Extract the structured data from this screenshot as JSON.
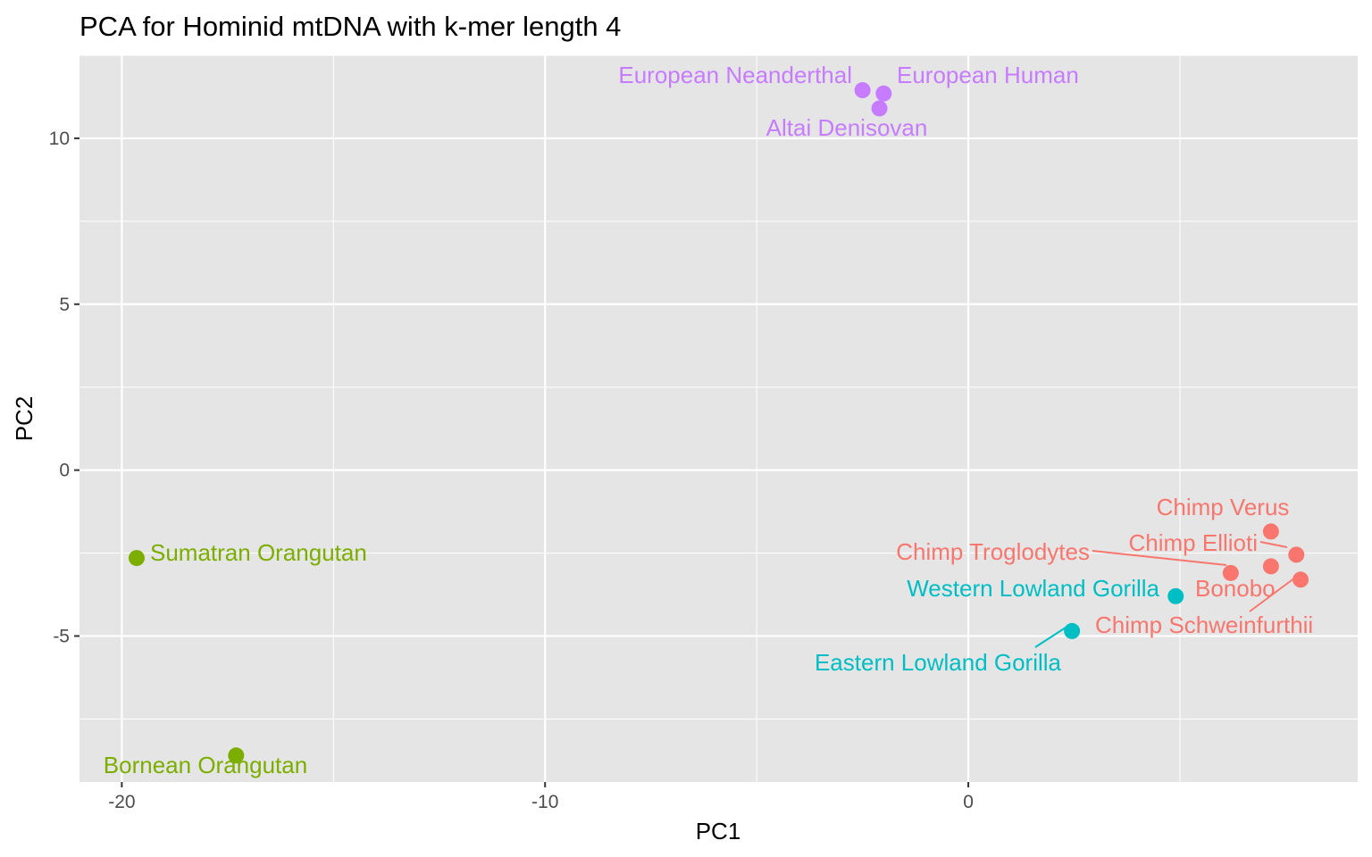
{
  "chart_data": {
    "type": "scatter",
    "title": "PCA for Hominid mtDNA with k-mer length 4",
    "xlabel": "PC1",
    "ylabel": "PC2",
    "xlim": [
      -21,
      9.2
    ],
    "ylim": [
      -9.4,
      12.5
    ],
    "x_ticks": [
      -20,
      -10,
      0
    ],
    "y_ticks": [
      -5,
      0,
      5,
      10
    ],
    "x_tick_labels": [
      "-20",
      "-10",
      "0"
    ],
    "y_tick_labels": [
      "-5",
      "0",
      "5",
      "10"
    ],
    "grid": true,
    "legend": "none",
    "colors": {
      "chimp": "#F8766D",
      "gorilla": "#00BFC4",
      "human": "#C77CFF",
      "orangutan": "#7CAE00",
      "panel_bg": "#E5E5E5",
      "grid": "#FFFFFF"
    },
    "points": [
      {
        "label": "European Neanderthal",
        "x": -2.5,
        "y": 11.45,
        "group": "human"
      },
      {
        "label": "European Human",
        "x": -2.0,
        "y": 11.35,
        "group": "human"
      },
      {
        "label": "Altai Denisovan",
        "x": -2.1,
        "y": 10.9,
        "group": "human"
      },
      {
        "label": "Chimp Verus",
        "x": 7.15,
        "y": -1.85,
        "group": "chimp"
      },
      {
        "label": "Chimp Ellioti",
        "x": 7.75,
        "y": -2.55,
        "group": "chimp"
      },
      {
        "label": "Chimp Troglodytes",
        "x": 6.2,
        "y": -3.1,
        "group": "chimp"
      },
      {
        "label": "Bonobo",
        "x": 7.15,
        "y": -2.9,
        "group": "chimp"
      },
      {
        "label": "Chimp Schweinfurthii",
        "x": 7.85,
        "y": -3.3,
        "group": "chimp"
      },
      {
        "label": "Western Lowland Gorilla",
        "x": 4.9,
        "y": -3.8,
        "group": "gorilla"
      },
      {
        "label": "Eastern Lowland Gorilla",
        "x": 2.45,
        "y": -4.85,
        "group": "gorilla"
      },
      {
        "label": "Sumatran Orangutan",
        "x": -19.65,
        "y": -2.65,
        "group": "orangutan"
      },
      {
        "label": "Bornean Orangutan",
        "x": -17.3,
        "y": -8.6,
        "group": "orangutan"
      }
    ]
  }
}
